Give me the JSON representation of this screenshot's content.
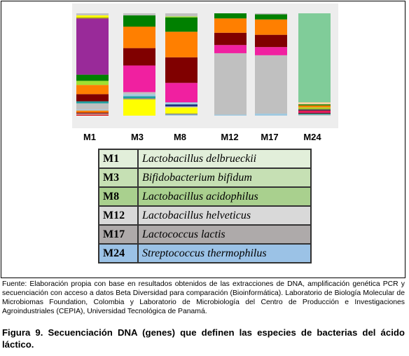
{
  "chart_data": {
    "type": "bar",
    "stacked": true,
    "normalized": true,
    "categories": [
      "M1",
      "M3",
      "M8",
      "M12",
      "M17",
      "M24"
    ],
    "series_colors": {
      "green": "#008000",
      "orange": "#ff7f00",
      "darkred": "#800000",
      "pink": "#f020a0",
      "purple": "#992a99",
      "lightgray": "#c0c0c0",
      "yellow": "#ffff00",
      "mint": "#80cc99",
      "lightblue": "#9ec9e0",
      "blue": "#3080c0",
      "peach": "#ffd0a0",
      "red": "#e00000",
      "teal": "#20a0a0",
      "olive": "#a0a000",
      "lime": "#a0e030",
      "navy": "#203080",
      "gray": "#808080"
    },
    "bars": [
      {
        "category": "M1",
        "segments": [
          {
            "color": "red",
            "value": 0.01
          },
          {
            "color": "lightgray",
            "value": 0.01
          },
          {
            "color": "darkred",
            "value": 0.01
          },
          {
            "color": "orange",
            "value": 0.02
          },
          {
            "color": "lightblue",
            "value": 0.01
          },
          {
            "color": "lightgray",
            "value": 0.06
          },
          {
            "color": "teal",
            "value": 0.02
          },
          {
            "color": "darkred",
            "value": 0.07
          },
          {
            "color": "orange",
            "value": 0.09
          },
          {
            "color": "lime",
            "value": 0.04
          },
          {
            "color": "green",
            "value": 0.06
          },
          {
            "color": "purple",
            "value": 0.55
          },
          {
            "color": "olive",
            "value": 0.01
          },
          {
            "color": "yellow",
            "value": 0.02
          },
          {
            "color": "lightgray",
            "value": 0.02
          }
        ]
      },
      {
        "category": "M3",
        "segments": [
          {
            "color": "yellow",
            "value": 0.16
          },
          {
            "color": "gray",
            "value": 0.01
          },
          {
            "color": "teal",
            "value": 0.02
          },
          {
            "color": "lightblue",
            "value": 0.02
          },
          {
            "color": "lightgray",
            "value": 0.02
          },
          {
            "color": "pink",
            "value": 0.26
          },
          {
            "color": "darkred",
            "value": 0.17
          },
          {
            "color": "orange",
            "value": 0.21
          },
          {
            "color": "green",
            "value": 0.11
          },
          {
            "color": "lightgray",
            "value": 0.02
          }
        ]
      },
      {
        "category": "M8",
        "segments": [
          {
            "color": "lightblue",
            "value": 0.01
          },
          {
            "color": "gray",
            "value": 0.01
          },
          {
            "color": "yellow",
            "value": 0.06
          },
          {
            "color": "lightgray",
            "value": 0.01
          },
          {
            "color": "navy",
            "value": 0.02
          },
          {
            "color": "lightblue",
            "value": 0.02
          },
          {
            "color": "pink",
            "value": 0.19
          },
          {
            "color": "darkred",
            "value": 0.25
          },
          {
            "color": "orange",
            "value": 0.25
          },
          {
            "color": "green",
            "value": 0.14
          },
          {
            "color": "lime",
            "value": 0.01
          },
          {
            "color": "lightgray",
            "value": 0.03
          }
        ]
      },
      {
        "category": "M12",
        "segments": [
          {
            "color": "lightblue",
            "value": 0.01
          },
          {
            "color": "lightgray",
            "value": 0.6
          },
          {
            "color": "pink",
            "value": 0.08
          },
          {
            "color": "darkred",
            "value": 0.12
          },
          {
            "color": "orange",
            "value": 0.14
          },
          {
            "color": "green",
            "value": 0.05
          }
        ]
      },
      {
        "category": "M17",
        "segments": [
          {
            "color": "lightblue",
            "value": 0.02
          },
          {
            "color": "lightgray",
            "value": 0.57
          },
          {
            "color": "pink",
            "value": 0.08
          },
          {
            "color": "darkred",
            "value": 0.12
          },
          {
            "color": "orange",
            "value": 0.15
          },
          {
            "color": "green",
            "value": 0.05
          },
          {
            "color": "lightgray",
            "value": 0.01
          }
        ]
      },
      {
        "category": "M24",
        "segments": [
          {
            "color": "lightgray",
            "value": 0.01
          },
          {
            "color": "teal",
            "value": 0.01
          },
          {
            "color": "darkred",
            "value": 0.01
          },
          {
            "color": "pink",
            "value": 0.01
          },
          {
            "color": "red",
            "value": 0.01
          },
          {
            "color": "navy",
            "value": 0.01
          },
          {
            "color": "olive",
            "value": 0.01
          },
          {
            "color": "lime",
            "value": 0.01
          },
          {
            "color": "orange",
            "value": 0.02
          },
          {
            "color": "green",
            "value": 0.01
          },
          {
            "color": "peach",
            "value": 0.02
          },
          {
            "color": "mint",
            "value": 0.87
          }
        ]
      }
    ],
    "xlabel": "",
    "ylabel": "",
    "ylim": [
      0,
      1
    ],
    "grid": false
  },
  "legend_table": [
    {
      "code": "M1",
      "species": "Lactobacillus delbrueckii",
      "color": "#e2efda"
    },
    {
      "code": "M3",
      "species": "Bifidobacterium bifidum",
      "color": "#c6e0b4"
    },
    {
      "code": "M8",
      "species": "Lactobacillus acidophilus",
      "color": "#a9d08e"
    },
    {
      "code": "M12",
      "species": "Lactobacillus helveticus",
      "color": "#d9d9d9"
    },
    {
      "code": "M17",
      "species": "Lactococcus lactis",
      "color": "#aeaaaa"
    },
    {
      "code": "M24",
      "species": "Streptococcus thermophilus",
      "color": "#9bc2e6"
    }
  ],
  "source_note": "Fuente: Elaboración propia con base en resultados obtenidos de las extracciones de DNA, amplificación genética PCR y secuenciación con acceso a datos Beta Diversidad para comparación (Bioinformática). Laboratorio de Biología Molecular de Microbiomas Foundation, Colombia y Laboratorio de Microbiología del Centro de Producción e Investigaciones Agroindustriales (CEPIA), Universidad Tecnológica de Panamá.",
  "caption": "Figura 9. Secuenciación DNA (genes) que definen las especies de bacterias del ácido láctico."
}
